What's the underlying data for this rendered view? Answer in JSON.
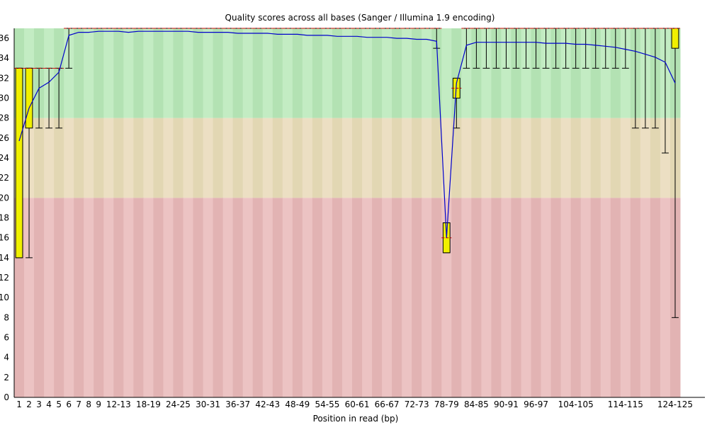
{
  "chart_data": {
    "type": "boxplot",
    "title": "Quality scores across all bases (Sanger / Illumina 1.9 encoding)",
    "xlabel": "Position in read (bp)",
    "ylabel": "",
    "ylim": [
      0,
      37
    ],
    "yticks": [
      0,
      2,
      4,
      6,
      8,
      10,
      12,
      14,
      16,
      18,
      20,
      22,
      24,
      26,
      28,
      30,
      32,
      34,
      36
    ],
    "bands": [
      {
        "from": 28,
        "to": 37,
        "colors": [
          "#b3e2b3",
          "#c3ecc3"
        ]
      },
      {
        "from": 20,
        "to": 28,
        "colors": [
          "#e2d7b3",
          "#ecdfc3"
        ]
      },
      {
        "from": 0,
        "to": 20,
        "colors": [
          "#e2b3b3",
          "#ecc3c3"
        ]
      }
    ],
    "colors": {
      "box": "#f0f000",
      "mean": "#0000cc",
      "median": "#cc0000",
      "whisker": "#000000"
    },
    "categories": [
      "1",
      "2",
      "3",
      "4",
      "5",
      "6",
      "7",
      "8",
      "9",
      "10-11",
      "12-13",
      "14-15",
      "16-17",
      "18-19",
      "20-21",
      "22-23",
      "24-25",
      "26-27",
      "28-29",
      "30-31",
      "32-33",
      "34-35",
      "36-37",
      "38-39",
      "40-41",
      "42-43",
      "44-45",
      "46-47",
      "48-49",
      "50-51",
      "52-53",
      "54-55",
      "56-57",
      "58-59",
      "60-61",
      "62-63",
      "64-65",
      "66-67",
      "68-69",
      "70-71",
      "72-73",
      "74-75",
      "76-77",
      "78-79",
      "80-81",
      "82-83",
      "84-85",
      "86-87",
      "88-89",
      "90-91",
      "92-93",
      "94-95",
      "96-97",
      "98-99",
      "100-101",
      "102-103",
      "104-105",
      "106-107",
      "108-109",
      "110-111",
      "112-113",
      "114-115",
      "116-117",
      "118-119",
      "120-121",
      "122-123",
      "124-125"
    ],
    "x_tick_labels": [
      "1",
      "2",
      "3",
      "4",
      "5",
      "6",
      "7",
      "8",
      "9",
      "12-13",
      "18-19",
      "24-25",
      "30-31",
      "36-37",
      "42-43",
      "48-49",
      "54-55",
      "60-61",
      "66-67",
      "72-73",
      "78-79",
      "84-85",
      "90-91",
      "96-97",
      "104-105",
      "114-115",
      "124-125"
    ],
    "series": [
      {
        "name": "mean",
        "values": [
          25.7,
          29.0,
          31.0,
          31.6,
          32.6,
          36.3,
          36.6,
          36.6,
          36.7,
          36.7,
          36.7,
          36.6,
          36.7,
          36.7,
          36.7,
          36.7,
          36.7,
          36.7,
          36.6,
          36.6,
          36.6,
          36.6,
          36.5,
          36.5,
          36.5,
          36.5,
          36.4,
          36.4,
          36.4,
          36.3,
          36.3,
          36.3,
          36.2,
          36.2,
          36.2,
          36.1,
          36.1,
          36.1,
          36.0,
          36.0,
          35.9,
          35.9,
          35.7,
          16.0,
          31.5,
          35.3,
          35.6,
          35.6,
          35.6,
          35.6,
          35.6,
          35.6,
          35.6,
          35.5,
          35.5,
          35.5,
          35.4,
          35.4,
          35.3,
          35.2,
          35.1,
          34.9,
          34.7,
          34.4,
          34.1,
          33.6,
          31.5
        ]
      },
      {
        "name": "median",
        "values": [
          33,
          33,
          33,
          33,
          33,
          37,
          37,
          37,
          37,
          37,
          37,
          37,
          37,
          37,
          37,
          37,
          37,
          37,
          37,
          37,
          37,
          37,
          37,
          37,
          37,
          37,
          37,
          37,
          37,
          37,
          37,
          37,
          37,
          37,
          37,
          37,
          37,
          37,
          37,
          37,
          37,
          37,
          37,
          16,
          31,
          37,
          37,
          37,
          37,
          37,
          37,
          37,
          37,
          37,
          37,
          37,
          37,
          37,
          37,
          37,
          37,
          37,
          37,
          37,
          37,
          37,
          37
        ]
      },
      {
        "name": "q1",
        "values": [
          14,
          27,
          33,
          33,
          33,
          37,
          37,
          37,
          37,
          37,
          37,
          37,
          37,
          37,
          37,
          37,
          37,
          37,
          37,
          37,
          37,
          37,
          37,
          37,
          37,
          37,
          37,
          37,
          37,
          37,
          37,
          37,
          37,
          37,
          37,
          37,
          37,
          37,
          37,
          37,
          37,
          37,
          37,
          14.5,
          30,
          37,
          37,
          37,
          37,
          37,
          37,
          37,
          37,
          37,
          37,
          37,
          37,
          37,
          37,
          37,
          37,
          37,
          37,
          37,
          37,
          37,
          35
        ]
      },
      {
        "name": "q3",
        "values": [
          33,
          33,
          33,
          33,
          33,
          37,
          37,
          37,
          37,
          37,
          37,
          37,
          37,
          37,
          37,
          37,
          37,
          37,
          37,
          37,
          37,
          37,
          37,
          37,
          37,
          37,
          37,
          37,
          37,
          37,
          37,
          37,
          37,
          37,
          37,
          37,
          37,
          37,
          37,
          37,
          37,
          37,
          37,
          17.5,
          32,
          37,
          37,
          37,
          37,
          37,
          37,
          37,
          37,
          37,
          37,
          37,
          37,
          37,
          37,
          37,
          37,
          37,
          37,
          37,
          37,
          37,
          37
        ]
      },
      {
        "name": "p10",
        "values": [
          14,
          14,
          27,
          27,
          27,
          33,
          37,
          37,
          37,
          37,
          37,
          37,
          37,
          37,
          37,
          37,
          37,
          37,
          37,
          37,
          37,
          37,
          37,
          37,
          37,
          37,
          37,
          37,
          37,
          37,
          37,
          37,
          37,
          37,
          37,
          37,
          37,
          37,
          37,
          37,
          37,
          37,
          35,
          14.5,
          27,
          33,
          33,
          33,
          33,
          33,
          33,
          33,
          33,
          33,
          33,
          33,
          33,
          33,
          33,
          33,
          33,
          33,
          27,
          27,
          27,
          24.5,
          8
        ]
      },
      {
        "name": "p90",
        "values": [
          33,
          33,
          33,
          33,
          33,
          37,
          37,
          37,
          37,
          37,
          37,
          37,
          37,
          37,
          37,
          37,
          37,
          37,
          37,
          37,
          37,
          37,
          37,
          37,
          37,
          37,
          37,
          37,
          37,
          37,
          37,
          37,
          37,
          37,
          37,
          37,
          37,
          37,
          37,
          37,
          37,
          37,
          37,
          17.5,
          32,
          37,
          37,
          37,
          37,
          37,
          37,
          37,
          37,
          37,
          37,
          37,
          37,
          37,
          37,
          37,
          37,
          37,
          37,
          37,
          37,
          37,
          37
        ]
      }
    ]
  }
}
